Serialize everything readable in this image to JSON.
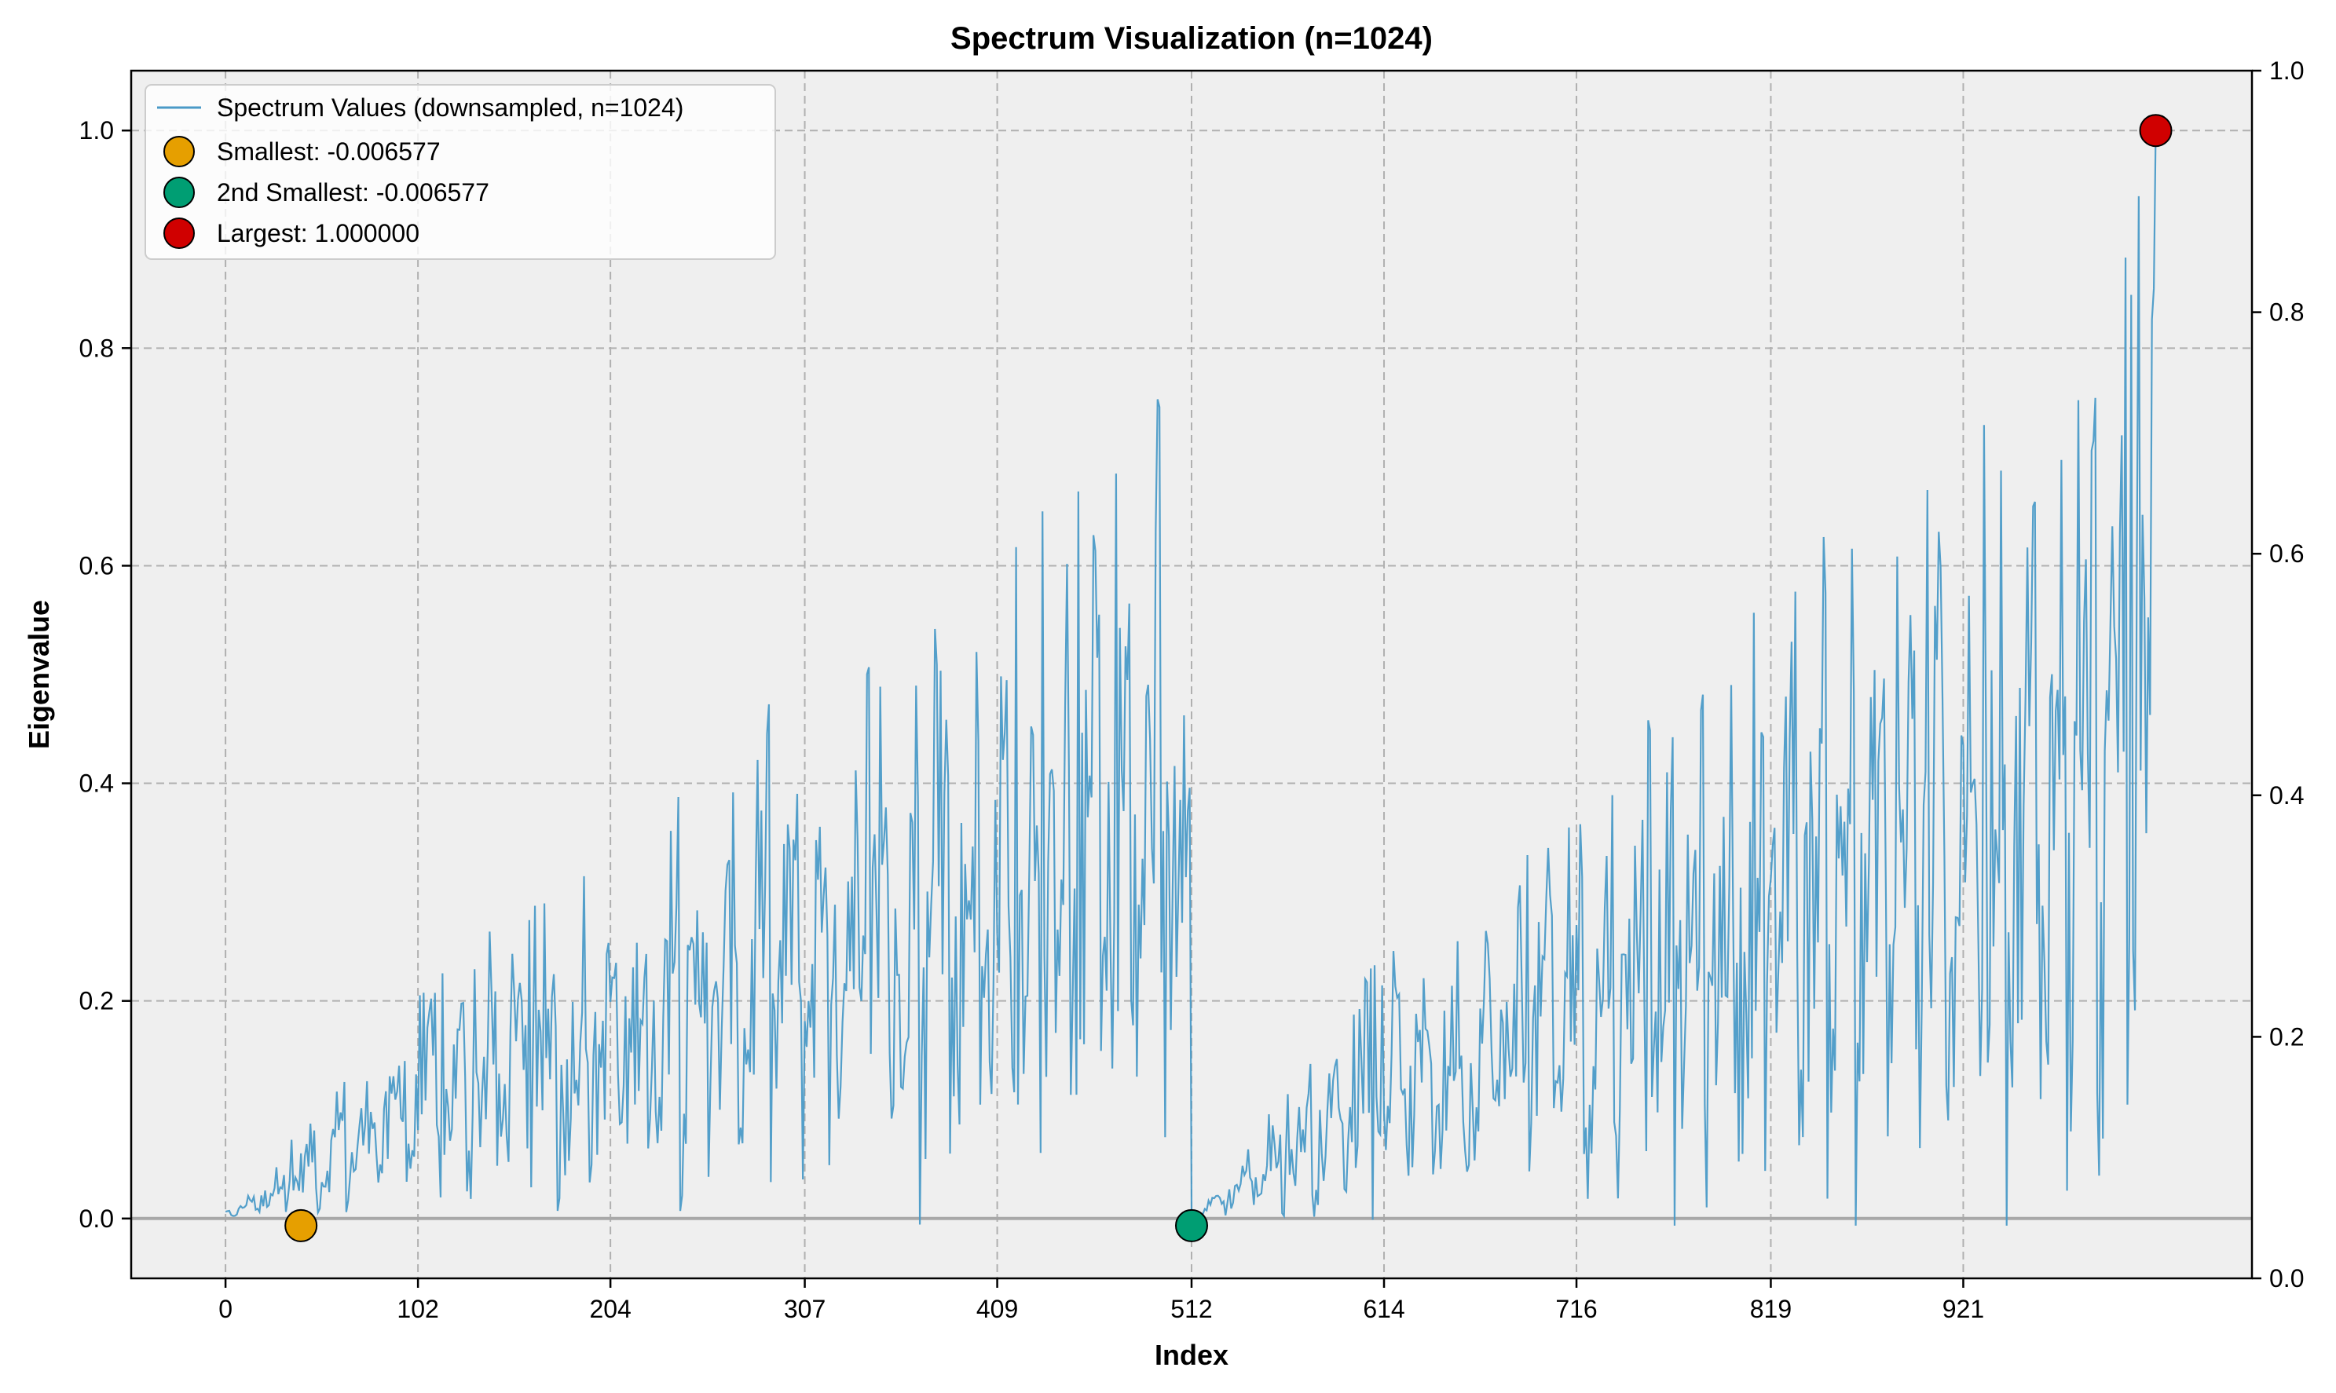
{
  "chart_data": {
    "type": "line",
    "title": "Spectrum Visualization (n=1024)",
    "xlabel": "Index",
    "ylabel": "Eigenvalue",
    "xlim": [
      -50,
      1074
    ],
    "ylim": [
      -0.055,
      1.055
    ],
    "right_ylim": [
      0.0,
      1.0
    ],
    "x_ticks": [
      "0",
      "102",
      "204",
      "307",
      "409",
      "512",
      "614",
      "716",
      "819",
      "921"
    ],
    "x_tick_values": [
      0,
      102,
      204,
      307,
      409,
      512,
      614,
      716,
      819,
      921
    ],
    "y_ticks": [
      "0.0",
      "0.2",
      "0.4",
      "0.6",
      "0.8",
      "1.0"
    ],
    "y_tick_values": [
      0.0,
      0.2,
      0.4,
      0.6,
      0.8,
      1.0
    ],
    "right_y_ticks": [
      "0.0",
      "0.2",
      "0.4",
      "0.6",
      "0.8",
      "1.0"
    ],
    "right_y_tick_values": [
      0.0,
      0.2,
      0.4,
      0.6,
      0.8,
      1.0
    ],
    "grid": true,
    "legend_position": "top-left",
    "zero_line": 0.0,
    "colors": {
      "line": "#4a9ac7",
      "background": "#efefef",
      "smallest": "#e69f00",
      "second_smallest": "#009e73",
      "largest": "#d00000",
      "zero_line": "#a8a8a8"
    },
    "series": [
      {
        "name": "Spectrum Values (downsampled, n=1024)",
        "x_range": [
          0,
          1023
        ],
        "description_points": [
          {
            "x": 0,
            "y": 0.0
          },
          {
            "x": 100,
            "y": 0.2
          },
          {
            "x": 200,
            "y": 0.3
          },
          {
            "x": 300,
            "y": 0.45
          },
          {
            "x": 400,
            "y": 0.55
          },
          {
            "x": 500,
            "y": 0.7
          },
          {
            "x": 511,
            "y": 0.75
          },
          {
            "x": 512,
            "y": 0.0
          },
          {
            "x": 600,
            "y": 0.2
          },
          {
            "x": 700,
            "y": 0.35
          },
          {
            "x": 800,
            "y": 0.5
          },
          {
            "x": 900,
            "y": 0.65
          },
          {
            "x": 1000,
            "y": 0.8
          },
          {
            "x": 1023,
            "y": 1.0
          }
        ]
      }
    ],
    "markers": [
      {
        "name": "Smallest: -0.006577",
        "x": 40,
        "y": -0.006577,
        "color": "#e69f00"
      },
      {
        "name": "2nd Smallest: -0.006577",
        "x": 512,
        "y": -0.006577,
        "color": "#009e73"
      },
      {
        "name": "Largest: 1.000000",
        "x": 1023,
        "y": 1.0,
        "color": "#d00000"
      }
    ]
  }
}
